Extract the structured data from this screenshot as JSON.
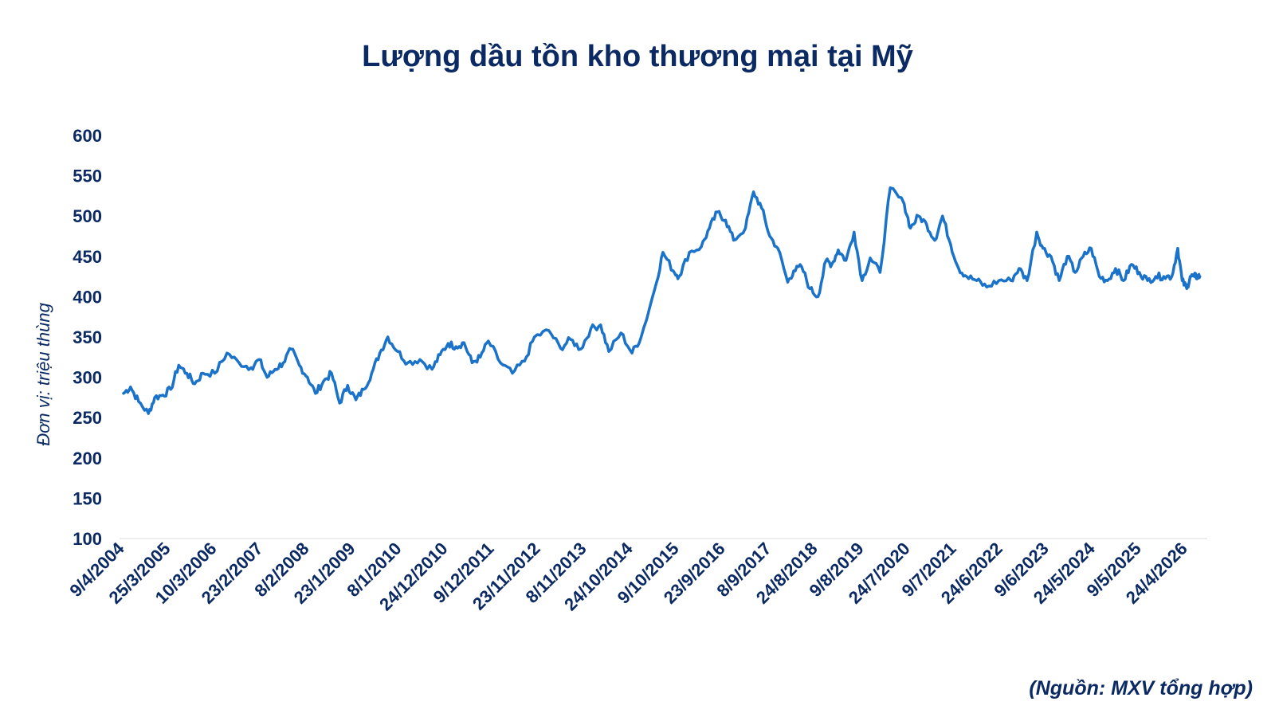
{
  "colors": {
    "line": "#1a72c9",
    "text": "#0b2a63",
    "axis": "#e6e6e6"
  },
  "source": "(Nguồn: MXV tổng hợp)",
  "chart_data": {
    "type": "line",
    "title": "Lượng dầu tồn kho thương mại tại Mỹ",
    "xlabel": "",
    "ylabel": "Đơn vị: triệu thùng",
    "ylim": [
      100,
      600
    ],
    "yticks": [
      100,
      150,
      200,
      250,
      300,
      350,
      400,
      450,
      500,
      550,
      600
    ],
    "grid": false,
    "legend": "none",
    "xticks": [
      "9/4/2004",
      "25/3/2005",
      "10/3/2006",
      "23/2/2007",
      "8/2/2008",
      "23/1/2009",
      "8/1/2010",
      "24/12/2010",
      "9/12/2011",
      "23/11/2012",
      "8/11/2013",
      "24/10/2014",
      "9/10/2015",
      "23/9/2016",
      "8/9/2017",
      "24/8/2018",
      "9/8/2019",
      "24/7/2020",
      "9/7/2021",
      "24/6/2022",
      "9/6/2023",
      "24/5/2024",
      "9/5/2025",
      "24/4/2026"
    ],
    "series": [
      {
        "x": [
          "2004-04-09",
          "2004-06-01",
          "2004-08-01",
          "2004-10-15",
          "2004-12-01",
          "2005-02-01",
          "2005-04-01",
          "2005-06-01",
          "2005-08-01",
          "2005-10-01",
          "2005-12-01",
          "2006-03-01",
          "2006-06-01",
          "2006-09-01",
          "2006-12-01",
          "2007-02-01",
          "2007-04-01",
          "2007-06-01",
          "2007-08-01",
          "2007-10-01",
          "2007-12-01",
          "2008-02-01",
          "2008-04-01",
          "2008-06-01",
          "2008-08-01",
          "2008-10-01",
          "2008-12-01",
          "2009-02-01",
          "2009-04-01",
          "2009-06-01",
          "2009-08-01",
          "2009-10-01",
          "2009-12-15",
          "2010-03-01",
          "2010-06-01",
          "2010-09-01",
          "2010-11-01",
          "2011-01-01",
          "2011-03-01",
          "2011-05-01",
          "2011-07-01",
          "2011-09-01",
          "2011-11-01",
          "2012-02-01",
          "2012-05-01",
          "2012-08-01",
          "2012-10-15",
          "2013-02-01",
          "2013-05-01",
          "2013-07-15",
          "2013-10-01",
          "2013-12-15",
          "2014-03-01",
          "2014-05-01",
          "2014-08-01",
          "2014-10-24",
          "2015-01-01",
          "2015-04-15",
          "2015-06-15",
          "2015-09-01",
          "2015-10-15",
          "2016-01-01",
          "2016-04-01",
          "2016-06-01",
          "2016-08-01",
          "2016-10-01",
          "2016-12-01",
          "2017-03-01",
          "2017-05-01",
          "2017-07-01",
          "2017-09-01",
          "2017-11-01",
          "2018-01-15",
          "2018-03-01",
          "2018-05-01",
          "2018-07-01",
          "2018-09-01",
          "2018-11-01",
          "2018-12-15",
          "2019-02-01",
          "2019-04-01",
          "2019-06-01",
          "2019-08-01",
          "2019-10-01",
          "2019-12-15",
          "2020-03-01",
          "2020-06-15",
          "2020-08-01",
          "2020-10-01",
          "2020-12-01",
          "2021-02-01",
          "2021-04-01",
          "2021-06-01",
          "2021-08-01",
          "2021-10-01",
          "2021-12-15",
          "2022-03-01",
          "2022-06-01",
          "2022-09-01",
          "2022-11-01",
          "2023-01-01",
          "2023-03-15",
          "2023-05-01",
          "2023-07-01",
          "2023-09-01",
          "2023-11-01",
          "2024-01-01",
          "2024-03-01",
          "2024-05-01",
          "2024-07-01",
          "2024-09-01",
          "2024-11-01",
          "2025-01-01",
          "2025-03-01",
          "2025-05-01",
          "2025-07-01",
          "2025-09-01",
          "2025-11-01",
          "2026-01-01",
          "2026-02-15",
          "2026-03-20",
          "2026-04-24",
          "2026-05-20",
          "2026-06-20",
          "2026-07-15",
          "2026-08-01"
        ],
        "y": [
          280,
          288,
          270,
          255,
          275,
          278,
          285,
          315,
          305,
          292,
          305,
          305,
          330,
          318,
          312,
          322,
          300,
          310,
          318,
          335,
          315,
          300,
          280,
          295,
          305,
          268,
          290,
          272,
          285,
          305,
          330,
          350,
          332,
          318,
          322,
          310,
          328,
          342,
          338,
          343,
          318,
          325,
          345,
          318,
          305,
          320,
          350,
          358,
          336,
          347,
          335,
          360,
          365,
          332,
          355,
          330,
          350,
          410,
          455,
          432,
          425,
          455,
          462,
          485,
          505,
          495,
          470,
          485,
          530,
          510,
          475,
          460,
          418,
          432,
          437,
          410,
          400,
          445,
          440,
          458,
          445,
          480,
          420,
          448,
          430,
          535,
          515,
          485,
          500,
          490,
          470,
          500,
          465,
          435,
          425,
          420,
          412,
          420,
          420,
          435,
          420,
          480,
          460,
          450,
          420,
          450,
          430,
          450,
          460,
          425,
          420,
          435,
          420,
          440,
          430,
          420,
          425,
          425,
          425,
          460,
          420,
          410,
          425,
          425,
          425,
          425
        ]
      }
    ]
  }
}
